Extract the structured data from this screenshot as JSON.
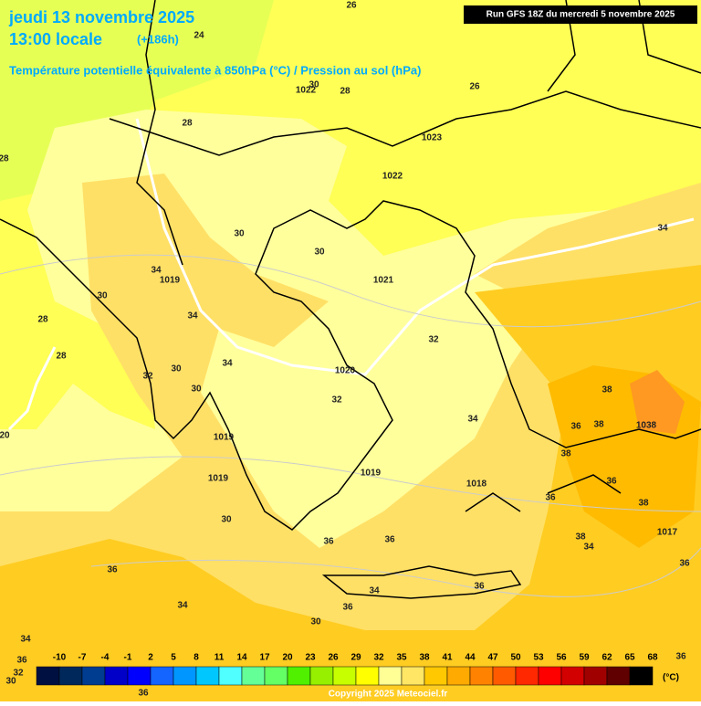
{
  "header": {
    "date": "jeudi 13 novembre 2025",
    "time": "13:00 locale",
    "lead": "(+186h)",
    "run": "Run GFS 18Z du mercredi 5 novembre 2025",
    "subtitle": "Température potentielle équivalente à 850hPa (°C) / Pression au sol (hPa)"
  },
  "map_labels": [
    "26",
    "24",
    "28",
    "28",
    "1022",
    "30",
    "28",
    "1023",
    "26",
    "1022",
    "30",
    "30",
    "34",
    "34",
    "1019",
    "1021",
    "30",
    "28",
    "34",
    "32",
    "28",
    "30",
    "34",
    "32",
    "1020",
    "30",
    "32",
    "38",
    "34",
    "36",
    "38",
    "1038",
    "1019",
    "38",
    "1019",
    "1018",
    "36",
    "1019",
    "36",
    "38",
    "30",
    "1017",
    "38",
    "34",
    "36",
    "36",
    "36",
    "36",
    "36",
    "34",
    "34",
    "36",
    "30",
    "34",
    "36",
    "32",
    "30",
    "36",
    "36",
    "20"
  ],
  "colorbar": {
    "labels": [
      -10,
      -7,
      -4,
      -1,
      2,
      5,
      8,
      11,
      14,
      17,
      20,
      23,
      26,
      29,
      32,
      35,
      38,
      41,
      44,
      47,
      50,
      53,
      56,
      59,
      62,
      65,
      68
    ],
    "colors": [
      "#001040",
      "#00285a",
      "#003c90",
      "#0000c8",
      "#0000ff",
      "#1464ff",
      "#0096ff",
      "#00c8ff",
      "#50ffff",
      "#64ff96",
      "#64ff64",
      "#50f000",
      "#96f000",
      "#c8ff00",
      "#ffff00",
      "#ffff96",
      "#ffe664",
      "#ffc800",
      "#ffaa00",
      "#ff8200",
      "#ff5a00",
      "#ff2800",
      "#ff0000",
      "#d20000",
      "#a00000",
      "#600000",
      "#000000"
    ],
    "unit": "(°C)"
  },
  "copyright": "Copyright 2025 Meteociel.fr"
}
